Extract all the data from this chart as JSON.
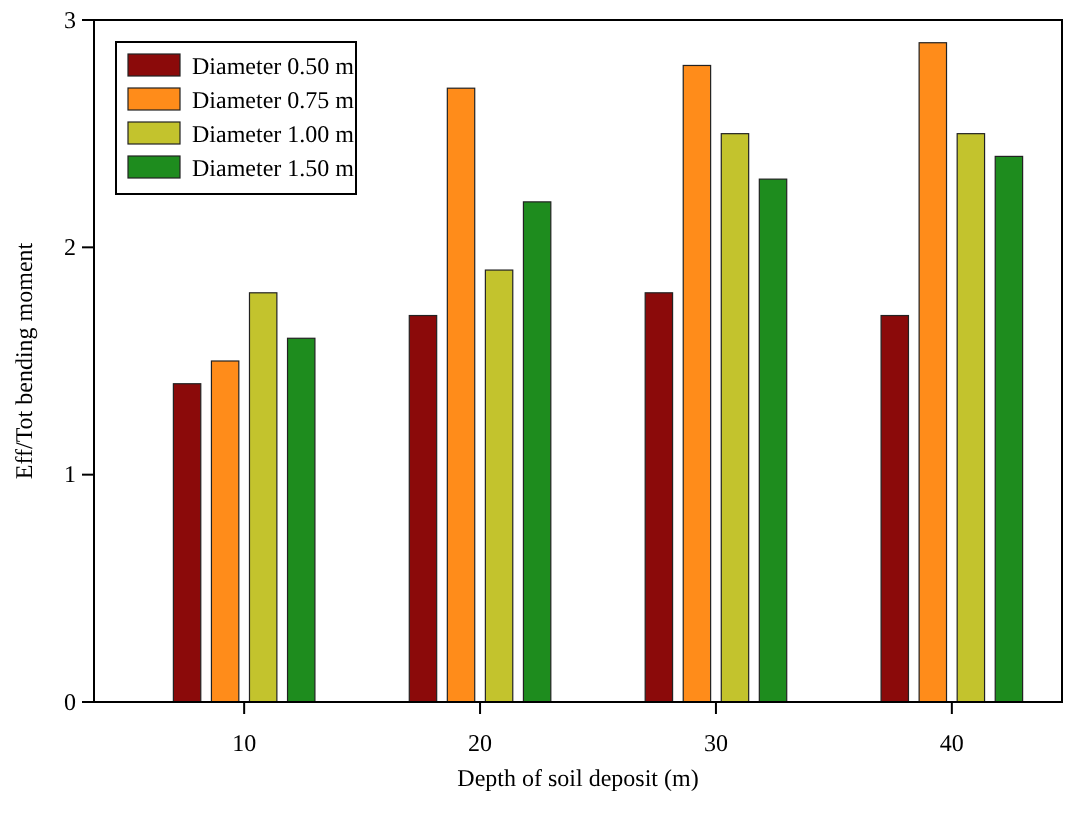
{
  "chart_data": {
    "type": "bar",
    "xlabel": "Depth of soil deposit (m)",
    "ylabel": "Eff/Tot bending moment",
    "categories": [
      "10",
      "20",
      "30",
      "40"
    ],
    "series": [
      {
        "name": "Diameter 0.50 m",
        "color": "#8b0a0a",
        "values": [
          1.4,
          1.7,
          1.8,
          1.7
        ]
      },
      {
        "name": "Diameter 0.75 m",
        "color": "#ff8c1a",
        "values": [
          1.5,
          2.7,
          2.8,
          2.9
        ]
      },
      {
        "name": "Diameter 1.00 m",
        "color": "#c3c32d",
        "values": [
          1.8,
          1.9,
          2.5,
          2.5
        ]
      },
      {
        "name": "Diameter 1.50 m",
        "color": "#1e8c1e",
        "values": [
          1.6,
          2.2,
          2.3,
          2.4
        ]
      }
    ],
    "ylim": [
      0,
      3
    ],
    "yticks": [
      0,
      1,
      2,
      3
    ],
    "legend": "top left",
    "grid": false
  }
}
